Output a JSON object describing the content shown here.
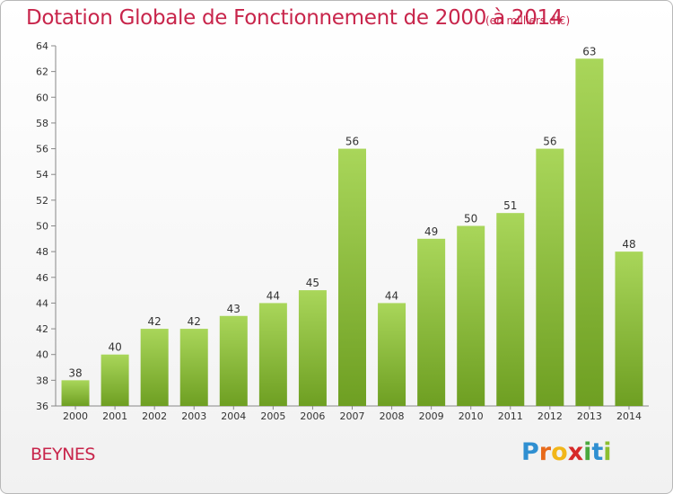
{
  "header": {
    "title": "Dotation Globale de Fonctionnement de 2000 à 2014",
    "unit": "(en milliers d'€)"
  },
  "footer": {
    "commune": "BEYNES",
    "logo_letters": [
      "P",
      "r",
      "o",
      "x",
      "i",
      "t",
      "i"
    ],
    "logo_colors": [
      "#2f8fd1",
      "#e86a1a",
      "#f2b619",
      "#d62a2a",
      "#4aa73d",
      "#2f8fd1",
      "#8dbf2f"
    ]
  },
  "colors": {
    "title": "#c8254b",
    "bar_light": "#a9d65a",
    "bar_dark": "#6e9f22"
  },
  "chart_data": {
    "type": "bar",
    "categories": [
      "2000",
      "2001",
      "2002",
      "2003",
      "2004",
      "2005",
      "2006",
      "2007",
      "2008",
      "2009",
      "2010",
      "2011",
      "2012",
      "2013",
      "2014"
    ],
    "values": [
      38,
      40,
      42,
      42,
      43,
      44,
      45,
      56,
      44,
      49,
      50,
      51,
      56,
      63,
      48
    ],
    "ylim": [
      36,
      64
    ],
    "yticks": [
      36,
      38,
      40,
      42,
      44,
      46,
      48,
      50,
      52,
      54,
      56,
      58,
      60,
      62,
      64
    ],
    "grid": false,
    "data_labels": true
  }
}
